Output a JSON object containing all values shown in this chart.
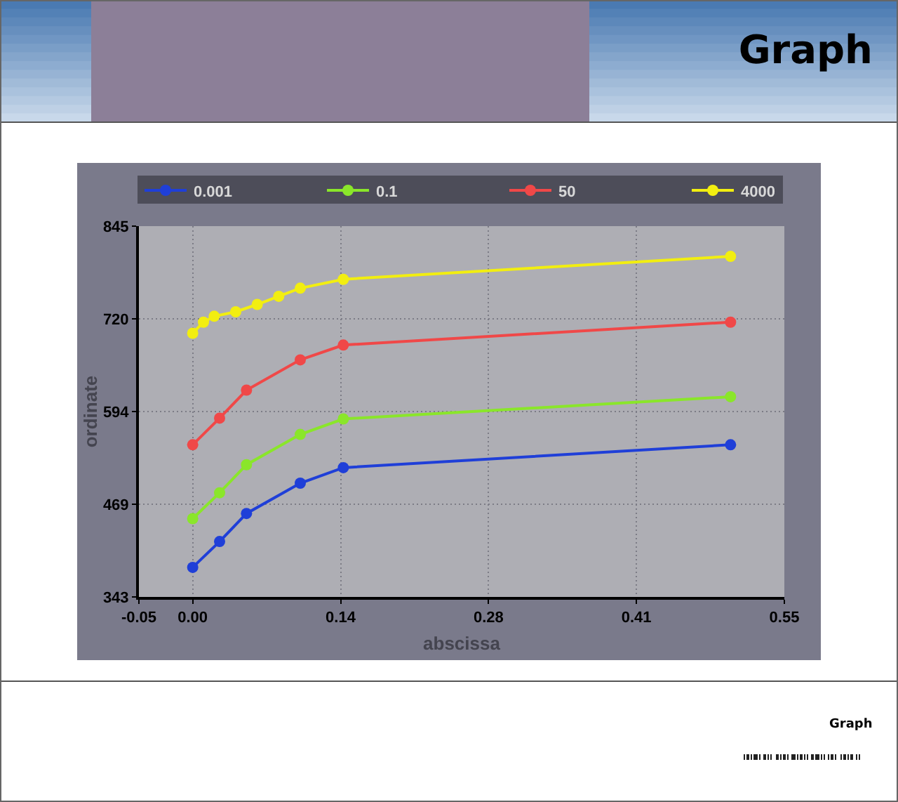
{
  "chart_data": {
    "type": "line",
    "title": "Graph",
    "xlabel": "abscissa",
    "ylabel": "ordinate",
    "annotations": [
      "Graph"
    ],
    "series": [
      {
        "name": "0.001",
        "color": "#1f3fd8",
        "x": [
          0,
          0.025,
          0.05,
          0.1,
          0.14,
          0.5
        ],
        "values": [
          383,
          418,
          456,
          497,
          518,
          549
        ]
      },
      {
        "name": "0.1",
        "color": "#8ae62a",
        "x": [
          0,
          0.025,
          0.05,
          0.1,
          0.14,
          0.5
        ],
        "values": [
          449,
          484,
          522,
          563,
          584,
          614
        ]
      },
      {
        "name": "50",
        "color": "#f04848",
        "x": [
          0,
          0.025,
          0.05,
          0.1,
          0.14,
          0.5
        ],
        "values": [
          549,
          585,
          623,
          664,
          684,
          715
        ]
      },
      {
        "name": "4000",
        "color": "#f2ee10",
        "x": [
          0,
          0.01,
          0.02,
          0.04,
          0.06,
          0.08,
          0.1,
          0.14,
          0.5
        ],
        "values": [
          700,
          715,
          723,
          729,
          739,
          750,
          761,
          773,
          804
        ]
      }
    ],
    "xlim": [
      -0.05,
      0.55
    ],
    "xticks": [
      -0.05,
      {
        "value": 0,
        "label": "0.00"
      },
      {
        "value": 0.1375,
        "label": "0.14"
      },
      {
        "value": 0.275,
        "label": "0.28"
      },
      {
        "value": 0.4125,
        "label": "0.41"
      },
      0.55
    ],
    "ylim": [
      343,
      845
    ],
    "yticks": [
      343,
      {
        "value": 468.5,
        "label": "469"
      },
      594,
      {
        "value": 719.5,
        "label": "720"
      },
      845
    ],
    "grid": true,
    "legend": "top",
    "marker": "circle",
    "line_style": "solid"
  }
}
